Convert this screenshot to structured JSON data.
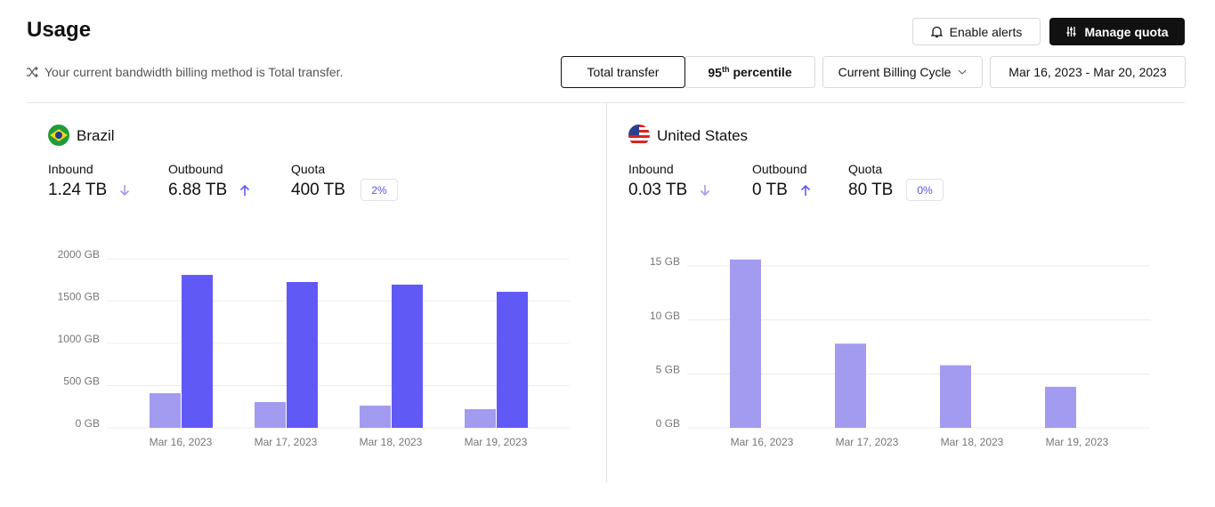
{
  "header": {
    "title": "Usage",
    "alerts_button": "Enable alerts",
    "quota_button": "Manage quota",
    "billing_note": "Your current bandwidth billing method is Total transfer."
  },
  "controls": {
    "total_transfer": "Total transfer",
    "percentile": {
      "base": "95",
      "sup": "th",
      "text": "percentile"
    },
    "cycle_dropdown": "Current Billing Cycle",
    "date_range": "Mar 16, 2023 - Mar 20, 2023"
  },
  "panels": [
    {
      "country": "Brazil",
      "stats": {
        "inbound_label": "Inbound",
        "inbound": "1.24 TB",
        "outbound_label": "Outbound",
        "outbound": "6.88 TB",
        "quota_label": "Quota",
        "quota": "400 TB",
        "quota_used": "2%"
      },
      "chart_data": {
        "type": "bar",
        "categories": [
          "Mar 16, 2023",
          "Mar 17, 2023",
          "Mar 18, 2023",
          "Mar 19, 2023"
        ],
        "series": [
          {
            "name": "Inbound",
            "color": "#a29bef",
            "values": [
              410,
              305,
              263,
              221
            ]
          },
          {
            "name": "Outbound",
            "color": "#6159f5",
            "values": [
              1810,
              1726,
              1695,
              1610
            ]
          }
        ],
        "ylim": [
          0,
          2000
        ],
        "yticks": [
          {
            "value": 0,
            "label": "0 GB"
          },
          {
            "value": 500,
            "label": "500 GB"
          },
          {
            "value": 1000,
            "label": "1000 GB"
          },
          {
            "value": 1500,
            "label": "1500 GB"
          },
          {
            "value": 2000,
            "label": "2000 GB"
          }
        ],
        "grid": true
      }
    },
    {
      "country": "United States",
      "stats": {
        "inbound_label": "Inbound",
        "inbound": "0.03 TB",
        "outbound_label": "Outbound",
        "outbound": "0 TB",
        "quota_label": "Quota",
        "quota": "80 TB",
        "quota_used": "0%"
      },
      "chart_data": {
        "type": "bar",
        "categories": [
          "Mar 16, 2023",
          "Mar 17, 2023",
          "Mar 18, 2023",
          "Mar 19, 2023"
        ],
        "series": [
          {
            "name": "Inbound",
            "color": "#a29bef",
            "values": [
              15.6,
              7.8,
              5.8,
              3.8
            ]
          },
          {
            "name": "Outbound",
            "color": "#6159f5",
            "values": [
              0,
              0,
              0,
              0
            ]
          }
        ],
        "ylim": [
          0,
          15
        ],
        "yticks": [
          {
            "value": 0,
            "label": "0 GB"
          },
          {
            "value": 5,
            "label": "5 GB"
          },
          {
            "value": 10,
            "label": "10 GB"
          },
          {
            "value": 15,
            "label": "15 GB"
          }
        ],
        "grid": true
      }
    }
  ]
}
